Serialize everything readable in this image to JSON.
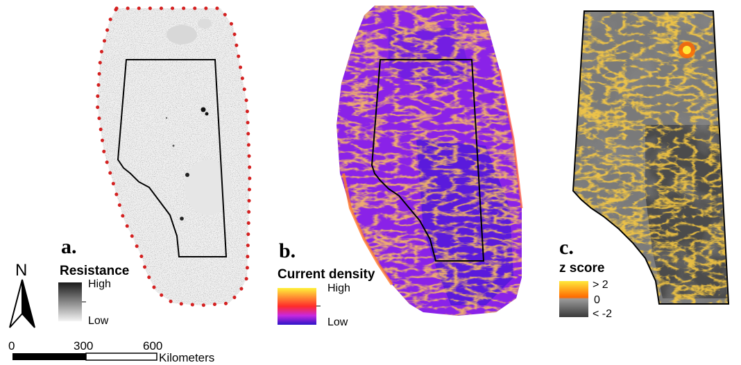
{
  "panels": [
    {
      "letter": "a.",
      "legend_title": "Resistance",
      "legend_high": "High",
      "legend_low": "Low"
    },
    {
      "letter": "b.",
      "legend_title": "Current density",
      "legend_high": "High",
      "legend_low": "Low"
    },
    {
      "letter": "c.",
      "legend_title": "z score",
      "legend_high": "> 2",
      "legend_mid": "0",
      "legend_low": "< -2"
    }
  ],
  "north_arrow": {
    "label": "N",
    "icon": "north-arrow-icon"
  },
  "scale_bar": {
    "ticks": [
      "0",
      "300",
      "600"
    ],
    "unit": "Kilometers"
  },
  "colors": {
    "buffer_dots": "#d42020",
    "resistance_high": "#1a1a1a",
    "resistance_low": "#f4f4f4",
    "current_high": "#fff23a",
    "current_mid": "#ff2a2a",
    "current_low": "#2a14c8",
    "z_high": "#ffe93a",
    "z_mid": "#ff6a00",
    "z_low": "#3a3a3a",
    "boundary": "#000000"
  }
}
